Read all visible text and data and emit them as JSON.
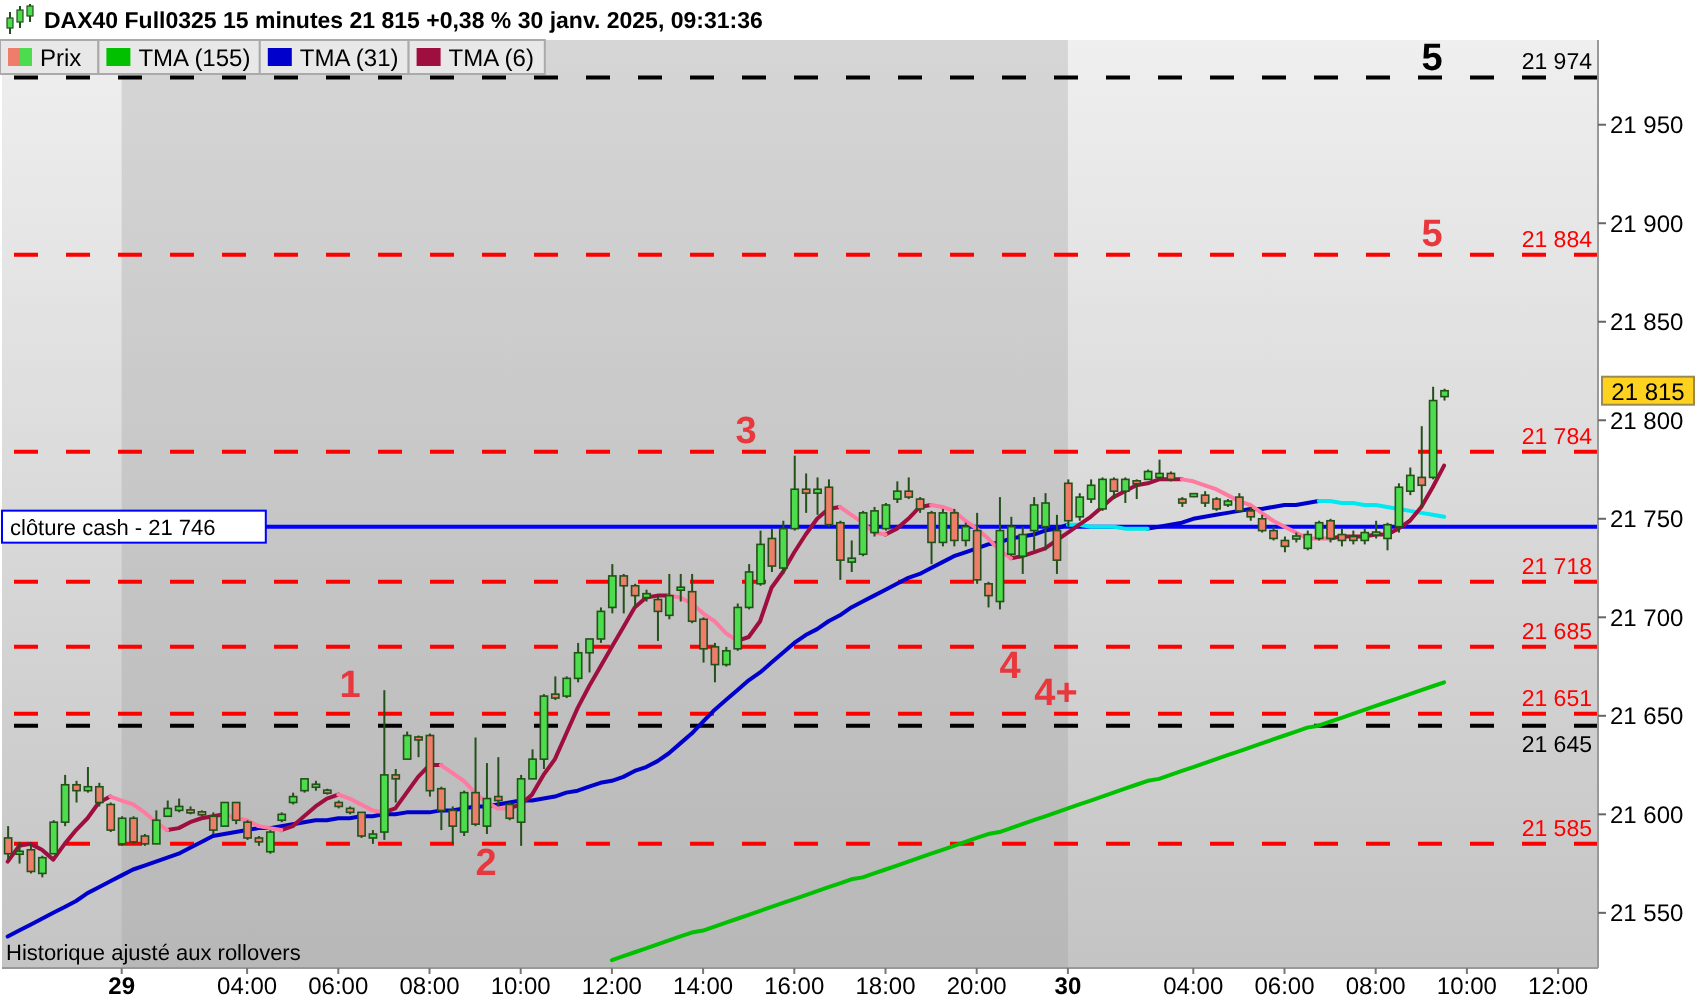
{
  "chart_data": {
    "type": "candlestick",
    "title": "DAX40 Full0325 15 minutes 21 815 +0,38 % 30 janv. 2025, 09:31:36",
    "categories": [
      null,
      null,
      null,
      null,
      null,
      null,
      null,
      null,
      null,
      null,
      "29",
      null,
      null,
      null,
      null,
      null,
      null,
      null,
      null,
      null,
      null,
      "04:00",
      null,
      null,
      null,
      null,
      null,
      null,
      null,
      "06:00",
      null,
      null,
      null,
      null,
      null,
      null,
      null,
      "08:00",
      null,
      null,
      null,
      null,
      null,
      null,
      null,
      "10:00",
      null,
      null,
      null,
      null,
      null,
      null,
      null,
      "12:00",
      null,
      null,
      null,
      null,
      null,
      null,
      null,
      "14:00",
      null,
      null,
      null,
      null,
      null,
      null,
      null,
      "16:00",
      null,
      null,
      null,
      null,
      null,
      null,
      null,
      "18:00",
      null,
      null,
      null,
      null,
      null,
      null,
      null,
      "20:00",
      null,
      null,
      null,
      null,
      null,
      null,
      null,
      "30",
      null,
      null,
      null,
      null,
      null,
      null,
      null,
      null,
      null,
      null,
      "04:00",
      null,
      null,
      null,
      null,
      null,
      null,
      null,
      "06:00",
      null,
      null,
      null,
      null,
      null,
      null,
      null,
      "08:00",
      null,
      null,
      null,
      null,
      null,
      null,
      null,
      "10:00",
      null,
      null,
      null,
      null,
      null,
      null,
      null,
      "12:00",
      null,
      null,
      null
    ],
    "series": [
      {
        "name": "Prix",
        "type": "candlestick",
        "ohlc": [
          [
            21588,
            21594,
            21577,
            21580
          ],
          [
            21580,
            21586,
            21575,
            21581
          ],
          [
            21582,
            21585,
            21570,
            21571
          ],
          [
            21570,
            21579,
            21568,
            21578
          ],
          [
            21580,
            21597,
            21580,
            21596
          ],
          [
            21596,
            21620,
            21594,
            21615
          ],
          [
            21615,
            21617,
            21606,
            21612
          ],
          [
            21612,
            21624,
            21611,
            21614
          ],
          [
            21614,
            21616,
            21604,
            21606
          ],
          [
            21605,
            21606,
            21591,
            21592
          ],
          [
            21585,
            21599,
            21584,
            21598
          ],
          [
            21598,
            21599,
            21585,
            21586
          ],
          [
            21589,
            21590,
            21584,
            21585
          ],
          [
            21585,
            21602,
            21585,
            21597
          ],
          [
            21599,
            21607,
            21599,
            21603
          ],
          [
            21602,
            21608,
            21601,
            21604
          ],
          [
            21602,
            21604,
            21600,
            21601
          ],
          [
            21601,
            21602,
            21599,
            21600
          ],
          [
            21599,
            21601,
            21590,
            21592
          ],
          [
            21594,
            21606,
            21594,
            21606
          ],
          [
            21606,
            21606,
            21595,
            21597
          ],
          [
            21596,
            21597,
            21587,
            21588
          ],
          [
            21588,
            21589,
            21584,
            21586
          ],
          [
            21581,
            21592,
            21580,
            21591
          ],
          [
            21597,
            21601,
            21596,
            21600
          ],
          [
            21606,
            21611,
            21605,
            21609
          ],
          [
            21612,
            21618,
            21611,
            21618
          ],
          [
            21614,
            21617,
            21612,
            21615
          ],
          [
            21612,
            21613,
            21610,
            21611
          ],
          [
            21606,
            21607,
            21603,
            21604
          ],
          [
            21603,
            21604,
            21600,
            21601
          ],
          [
            21601,
            21601,
            21588,
            21589
          ],
          [
            21588,
            21592,
            21585,
            21590
          ],
          [
            21591,
            21663,
            21587,
            21620
          ],
          [
            21620,
            21623,
            21606,
            21618
          ],
          [
            21628,
            21642,
            21628,
            21640
          ],
          [
            21639,
            21640,
            21629,
            21638
          ],
          [
            21640,
            21641,
            21609,
            21612
          ],
          [
            21613,
            21614,
            21592,
            21602
          ],
          [
            21602,
            21604,
            21585,
            21594
          ],
          [
            21591,
            21612,
            21589,
            21611
          ],
          [
            21611,
            21639,
            21594,
            21595
          ],
          [
            21594,
            21626,
            21590,
            21608
          ],
          [
            21609,
            21629,
            21604,
            21607
          ],
          [
            21605,
            21606,
            21597,
            21598
          ],
          [
            21596,
            21620,
            21584,
            21618
          ],
          [
            21618,
            21633,
            21618,
            21628
          ],
          [
            21628,
            21661,
            21623,
            21660
          ],
          [
            21661,
            21670,
            21658,
            21659
          ],
          [
            21660,
            21670,
            21659,
            21669
          ],
          [
            21669,
            21687,
            21667,
            21682
          ],
          [
            21682,
            21689,
            21672,
            21689
          ],
          [
            21689,
            21705,
            21687,
            21703
          ],
          [
            21705,
            21727,
            21702,
            21721
          ],
          [
            21721,
            21722,
            21702,
            21716
          ],
          [
            21716,
            21717,
            21705,
            21711
          ],
          [
            21710,
            21714,
            21708,
            21712
          ],
          [
            21709,
            21711,
            21688,
            21703
          ],
          [
            21701,
            21722,
            21699,
            21711
          ],
          [
            21714,
            21722,
            21708,
            21715
          ],
          [
            21713,
            21722,
            21697,
            21698
          ],
          [
            21699,
            21700,
            21677,
            21684
          ],
          [
            21685,
            21687,
            21667,
            21676
          ],
          [
            21676,
            21685,
            21675,
            21683
          ],
          [
            21684,
            21707,
            21683,
            21705
          ],
          [
            21705,
            21727,
            21704,
            21723
          ],
          [
            21717,
            21744,
            21716,
            21737
          ],
          [
            21740,
            21745,
            21723,
            21726
          ],
          [
            21725,
            21749,
            21722,
            21745
          ],
          [
            21745,
            21782,
            21744,
            21765
          ],
          [
            21765,
            21773,
            21753,
            21763
          ],
          [
            21763,
            21771,
            21752,
            21765
          ],
          [
            21766,
            21770,
            21746,
            21747
          ],
          [
            21748,
            21749,
            21719,
            21729
          ],
          [
            21728,
            21739,
            21723,
            21730
          ],
          [
            21732,
            21754,
            21731,
            21753
          ],
          [
            21743,
            21756,
            21741,
            21754
          ],
          [
            21745,
            21758,
            21744,
            21757
          ],
          [
            21760,
            21769,
            21758,
            21764
          ],
          [
            21764,
            21771,
            21760,
            21761
          ],
          [
            21760,
            21761,
            21753,
            21755
          ],
          [
            21753,
            21754,
            21727,
            21738
          ],
          [
            21738,
            21755,
            21736,
            21753
          ],
          [
            21753,
            21755,
            21736,
            21739
          ],
          [
            21739,
            21748,
            21736,
            21746
          ],
          [
            21744,
            21753,
            21717,
            21719
          ],
          [
            21717,
            21718,
            21705,
            21711
          ],
          [
            21708,
            21761,
            21704,
            21744
          ],
          [
            21732,
            21751,
            21731,
            21746
          ],
          [
            21731,
            21746,
            21722,
            21742
          ],
          [
            21744,
            21761,
            21734,
            21757
          ],
          [
            21746,
            21763,
            21734,
            21758
          ],
          [
            21744,
            21752,
            21722,
            21729
          ],
          [
            21768,
            21770,
            21746,
            21749
          ],
          [
            21751,
            21763,
            21749,
            21761
          ],
          [
            21760,
            21770,
            21758,
            21767
          ],
          [
            21755,
            21771,
            21754,
            21770
          ],
          [
            21770,
            21771,
            21760,
            21764
          ],
          [
            21764,
            21771,
            21758,
            21770
          ],
          [
            21769,
            21770,
            21760,
            21768
          ],
          [
            21770,
            21775,
            21770,
            21774
          ],
          [
            21771,
            21780,
            21770,
            21773
          ],
          [
            21773,
            21774,
            21769,
            21770
          ],
          [
            21760,
            21761,
            21756,
            21758
          ],
          [
            21762,
            21763,
            21761,
            21762
          ],
          [
            21762,
            21764,
            21756,
            21758
          ],
          [
            21760,
            21761,
            21754,
            21755
          ],
          [
            21757,
            21760,
            21756,
            21759
          ],
          [
            21761,
            21763,
            21753,
            21754
          ],
          [
            21754,
            21756,
            21749,
            21751
          ],
          [
            21750,
            21752,
            21743,
            21744
          ],
          [
            21744,
            21746,
            21739,
            21740
          ],
          [
            21739,
            21741,
            21733,
            21736
          ],
          [
            21740,
            21743,
            21738,
            21741
          ],
          [
            21735,
            21744,
            21734,
            21742
          ],
          [
            21740,
            21749,
            21739,
            21748
          ],
          [
            21749,
            21750,
            21738,
            21740
          ],
          [
            21742,
            21745,
            21736,
            21739
          ],
          [
            21741,
            21744,
            21737,
            21739
          ],
          [
            21739,
            21745,
            21737,
            21743
          ],
          [
            21742,
            21749,
            21740,
            21743
          ],
          [
            21740,
            21748,
            21734,
            21747
          ],
          [
            21746,
            21768,
            21743,
            21766
          ],
          [
            21764,
            21776,
            21762,
            21772
          ],
          [
            21771,
            21797,
            21756,
            21767
          ],
          [
            21771,
            21817,
            21770,
            21810
          ],
          [
            21812,
            21816,
            21810,
            21815
          ],
          null,
          null,
          null,
          null,
          null,
          null,
          null,
          null,
          null,
          null,
          null,
          null,
          null
        ],
        "colors": [
          "#ef7d6b",
          "#4ddc4d",
          "#ef7d6b",
          "#4ddc4d",
          "#4ddc4d",
          "#4ddc4d",
          "#ef7d6b",
          "#4ddc4d",
          "#ef7d6b",
          "#ef7d6b",
          "#4ddc4d",
          "#ef7d6b",
          "#ef7d6b",
          "#4ddc4d",
          "#4ddc4d",
          "#4ddc4d",
          "#ef7d6b",
          "#ef7d6b",
          "#ef7d6b",
          "#4ddc4d",
          "#ef7d6b",
          "#ef7d6b",
          "#ef7d6b",
          "#4ddc4d",
          "#4ddc4d",
          "#4ddc4d",
          "#4ddc4d",
          "#4ddc4d",
          "#ef7d6b",
          "#ef7d6b",
          "#ef7d6b",
          "#ef7d6b",
          "#4ddc4d",
          "#4ddc4d",
          "#ef7d6b",
          "#4ddc4d",
          "#ef7d6b",
          "#ef7d6b",
          "#ef7d6b",
          "#ef7d6b",
          "#4ddc4d",
          "#ef7d6b",
          "#4ddc4d",
          "#ef7d6b",
          "#ef7d6b",
          "#4ddc4d",
          "#4ddc4d",
          "#4ddc4d",
          "#ef7d6b",
          "#4ddc4d",
          "#4ddc4d",
          "#4ddc4d",
          "#4ddc4d",
          "#4ddc4d",
          "#ef7d6b",
          "#ef7d6b",
          "#4ddc4d",
          "#ef7d6b",
          "#4ddc4d",
          "#4ddc4d",
          "#ef7d6b",
          "#ef7d6b",
          "#ef7d6b",
          "#4ddc4d",
          "#4ddc4d",
          "#4ddc4d",
          "#4ddc4d",
          "#ef7d6b",
          "#4ddc4d",
          "#4ddc4d",
          "#ef7d6b",
          "#4ddc4d",
          "#ef7d6b",
          "#ef7d6b",
          "#4ddc4d",
          "#4ddc4d",
          "#4ddc4d",
          "#4ddc4d",
          "#4ddc4d",
          "#ef7d6b",
          "#ef7d6b",
          "#ef7d6b",
          "#4ddc4d",
          "#ef7d6b",
          "#4ddc4d",
          "#ef7d6b",
          "#ef7d6b",
          "#4ddc4d",
          "#4ddc4d",
          "#4ddc4d",
          "#4ddc4d",
          "#4ddc4d",
          "#ef7d6b",
          "#ef7d6b",
          "#4ddc4d",
          "#4ddc4d",
          "#4ddc4d",
          "#ef7d6b",
          "#4ddc4d",
          "#ef7d6b",
          "#4ddc4d",
          "#4ddc4d",
          "#ef7d6b",
          "#ef7d6b",
          "#4ddc4d",
          "#ef7d6b",
          "#ef7d6b",
          "#4ddc4d",
          "#ef7d6b",
          "#ef7d6b",
          "#ef7d6b",
          "#ef7d6b",
          "#ef7d6b",
          "#4ddc4d",
          "#4ddc4d",
          "#4ddc4d",
          "#ef7d6b",
          "#ef7d6b",
          "#ef7d6b",
          "#4ddc4d",
          "#4ddc4d",
          "#4ddc4d",
          "#4ddc4d",
          "#4ddc4d",
          "#ef7d6b",
          "#4ddc4d",
          "#4ddc4d",
          null,
          null,
          null,
          null,
          null,
          null,
          null,
          null,
          null,
          null,
          null,
          null,
          null
        ]
      },
      {
        "name": "TMA (155)",
        "type": "line",
        "color": "#00c000",
        "values": [
          null,
          null,
          null,
          null,
          null,
          null,
          null,
          null,
          null,
          null,
          null,
          null,
          null,
          null,
          null,
          null,
          null,
          null,
          null,
          null,
          null,
          null,
          null,
          null,
          null,
          null,
          null,
          null,
          null,
          null,
          null,
          null,
          null,
          null,
          null,
          null,
          null,
          null,
          null,
          null,
          null,
          null,
          null,
          null,
          null,
          null,
          null,
          null,
          null,
          null,
          null,
          null,
          null,
          21526,
          21528,
          21530,
          21532,
          21534,
          21536,
          21538,
          21540,
          21541,
          21543,
          21545,
          21547,
          21549,
          21551,
          21553,
          21555,
          21557,
          21559,
          21561,
          21563,
          21565,
          21567,
          21568,
          21570,
          21572,
          21574,
          21576,
          21578,
          21580,
          21582,
          21584,
          21586,
          21588,
          21590,
          21591,
          21593,
          21595,
          21597,
          21599,
          21601,
          21603,
          21605,
          21607,
          21609,
          21611,
          21613,
          21615,
          21617,
          21618,
          21620,
          21622,
          21624,
          21626,
          21628,
          21630,
          21632,
          21634,
          21636,
          21638,
          21640,
          21642,
          21644,
          21645,
          21647,
          21649,
          21651,
          21653,
          21655,
          21657,
          21659,
          21661,
          21663,
          21665,
          21667,
          null,
          null,
          null,
          null,
          null,
          null,
          null,
          null,
          null,
          null,
          null,
          null,
          null
        ]
      },
      {
        "name": "TMA (31)",
        "type": "line",
        "color": "#0000cc",
        "values": [
          21538,
          21541,
          21544,
          21547,
          21550,
          21553,
          21556,
          21560,
          21563,
          21566,
          21569,
          21572,
          21574,
          21576,
          21578,
          21580,
          21583,
          21586,
          21589,
          21590,
          21591,
          21592,
          21593,
          21593,
          21594,
          21595,
          21596,
          21597,
          21597,
          21598,
          21598,
          21599,
          21599,
          21600,
          21600,
          21601,
          21601,
          21601,
          21602,
          21602,
          21603,
          21604,
          21604,
          21605,
          21606,
          21607,
          21607,
          21608,
          21609,
          21611,
          21612,
          21614,
          21616,
          21617,
          21619,
          21622,
          21624,
          21627,
          21631,
          21636,
          21641,
          21647,
          21653,
          21658,
          21663,
          21668,
          21672,
          21677,
          21682,
          21687,
          21691,
          21694,
          21698,
          21701,
          21705,
          21708,
          21711,
          21714,
          21717,
          21720,
          21722,
          21725,
          21728,
          21731,
          21733,
          21735,
          21737,
          21738,
          21740,
          21741,
          21742,
          21744,
          21745,
          21747,
          null,
          null,
          null,
          null,
          null,
          null,
          21745,
          21746,
          21747,
          21748,
          21750,
          21751,
          21752,
          21753,
          21754,
          21755,
          21755,
          21756,
          21757,
          21757,
          21758,
          21759,
          null,
          null,
          null,
          null,
          null,
          null,
          null,
          null,
          null,
          null,
          null,
          null,
          null,
          null,
          null,
          null,
          null,
          null,
          null,
          null,
          null,
          null,
          null,
          null
        ]
      },
      {
        "type": "line",
        "color": "#00e8f0",
        "values": [
          null,
          null,
          null,
          null,
          null,
          null,
          null,
          null,
          null,
          null,
          null,
          null,
          null,
          null,
          null,
          null,
          null,
          null,
          null,
          null,
          null,
          null,
          null,
          null,
          null,
          null,
          null,
          null,
          null,
          null,
          null,
          null,
          null,
          null,
          null,
          null,
          null,
          null,
          null,
          null,
          null,
          null,
          null,
          null,
          null,
          null,
          null,
          null,
          null,
          null,
          null,
          null,
          null,
          null,
          null,
          null,
          null,
          null,
          null,
          null,
          null,
          null,
          null,
          null,
          null,
          null,
          null,
          null,
          null,
          null,
          null,
          null,
          null,
          null,
          null,
          null,
          null,
          null,
          null,
          null,
          null,
          null,
          null,
          null,
          null,
          null,
          null,
          null,
          null,
          null,
          null,
          null,
          null,
          21747,
          21747,
          21746,
          21746,
          21746,
          21745,
          21745,
          21745,
          null,
          null,
          null,
          null,
          null,
          null,
          null,
          null,
          null,
          null,
          null,
          null,
          null,
          null,
          21759,
          21759,
          21758,
          21758,
          21757,
          21757,
          21756,
          21755,
          21754,
          21753,
          21752,
          21751,
          null,
          null,
          null,
          null,
          null,
          null,
          null,
          null,
          null,
          null,
          null,
          null,
          null
        ]
      },
      {
        "name": "TMA (6)",
        "type": "line",
        "color": "#9e0e3e",
        "values": [
          21576,
          21584,
          21585,
          21582,
          21577,
          21585,
          21592,
          21598,
          21606,
          21609,
          null,
          null,
          null,
          null,
          21592,
          21593,
          21596,
          21598,
          21599,
          21600,
          null,
          null,
          null,
          null,
          21592,
          21594,
          21599,
          21604,
          21608,
          21610,
          null,
          null,
          null,
          21601,
          21603,
          21611,
          21619,
          21625,
          21625,
          null,
          null,
          null,
          null,
          null,
          21603,
          21605,
          21610,
          21620,
          21628,
          21641,
          21654,
          21665,
          21675,
          21685,
          21695,
          21705,
          21710,
          21711,
          21711,
          null,
          null,
          null,
          null,
          null,
          21688,
          21690,
          21698,
          21715,
          21723,
          21733,
          21742,
          21750,
          21755,
          21756,
          null,
          null,
          null,
          21742,
          21745,
          21750,
          21756,
          21757,
          null,
          null,
          null,
          null,
          null,
          null,
          21730,
          21731,
          21733,
          21735,
          21739,
          21743,
          21747,
          21751,
          21756,
          21761,
          21764,
          21767,
          21768,
          21770,
          21770,
          21770,
          null,
          null,
          null,
          null,
          null,
          null,
          null,
          null,
          null,
          null,
          null,
          null,
          21740,
          21741,
          21741,
          21741,
          21742,
          21742,
          21745,
          21749,
          21756,
          21766,
          21777,
          null,
          null,
          null,
          null,
          null,
          null,
          null,
          null,
          null,
          null,
          null,
          null,
          null
        ]
      },
      {
        "type": "line",
        "color": "#ff7aa0",
        "values": [
          null,
          null,
          null,
          null,
          null,
          null,
          null,
          null,
          null,
          21609,
          21607,
          21605,
          21601,
          21596,
          21592,
          null,
          null,
          null,
          null,
          21600,
          21598,
          21597,
          21594,
          21593,
          21592,
          null,
          null,
          null,
          null,
          21610,
          21608,
          21605,
          21602,
          21601,
          null,
          null,
          null,
          null,
          21625,
          21621,
          21617,
          21611,
          21606,
          21603,
          21603,
          null,
          null,
          null,
          null,
          null,
          null,
          null,
          null,
          null,
          null,
          null,
          null,
          null,
          21711,
          21710,
          21707,
          21702,
          21698,
          21692,
          21688,
          null,
          null,
          null,
          null,
          null,
          null,
          null,
          null,
          21756,
          21752,
          21748,
          21743,
          21742,
          null,
          null,
          null,
          21757,
          21756,
          21754,
          21749,
          21745,
          21740,
          21734,
          21730,
          null,
          null,
          null,
          null,
          null,
          null,
          null,
          null,
          null,
          null,
          null,
          null,
          null,
          null,
          21770,
          21769,
          21767,
          21765,
          21762,
          21759,
          21757,
          21753,
          21749,
          21746,
          21743,
          21740,
          21740,
          21740,
          null,
          null,
          null,
          null,
          null,
          null,
          null,
          null,
          null,
          null,
          null,
          null,
          null,
          null,
          null,
          null,
          null,
          null,
          null,
          null,
          null,
          null,
          null
        ]
      }
    ],
    "ylim": [
      21522,
      21993
    ],
    "yticks": [
      {
        "value": 21550,
        "label": "21 550"
      },
      {
        "value": 21600,
        "label": "21 600"
      },
      {
        "value": 21650,
        "label": "21 650"
      },
      {
        "value": 21700,
        "label": "21 700"
      },
      {
        "value": 21750,
        "label": "21 750"
      },
      {
        "value": 21800,
        "label": "21 800"
      },
      {
        "value": 21850,
        "label": "21 850"
      },
      {
        "value": 21900,
        "label": "21 900"
      },
      {
        "value": 21950,
        "label": "21 950"
      }
    ],
    "ref_lines": [
      {
        "axis": "y",
        "value": 21974,
        "label": "21 974",
        "color": "#000000",
        "line_style": "dashed"
      },
      {
        "axis": "y",
        "value": 21884,
        "label": "21 884",
        "color": "#ff0000",
        "line_style": "dashed"
      },
      {
        "axis": "y",
        "value": 21784,
        "label": "21 784",
        "color": "#ff0000",
        "line_style": "dashed"
      },
      {
        "axis": "y",
        "value": 21746,
        "label": "clôture cash - 21 746",
        "color": "#0000ff",
        "line_style": "solid"
      },
      {
        "axis": "y",
        "value": 21718,
        "label": "21 718",
        "color": "#ff0000",
        "line_style": "dashed"
      },
      {
        "axis": "y",
        "value": 21685,
        "label": "21 685",
        "color": "#ff0000",
        "line_style": "dashed"
      },
      {
        "axis": "y",
        "value": 21651,
        "label": "21 651",
        "color": "#ff0000",
        "line_style": "dashed"
      },
      {
        "axis": "y",
        "value": 21645,
        "label": "21 645",
        "color": "#000000",
        "line_style": "dashed"
      },
      {
        "axis": "y",
        "value": 21585,
        "label": "21 585",
        "color": "#ff0000",
        "line_style": "dashed"
      }
    ],
    "bands": [
      {
        "axis": "x",
        "from": "29",
        "to": "30",
        "color": "#9a9a9a"
      }
    ],
    "annotations": [
      "1",
      {
        "text": "2",
        "y": 21585
      },
      {
        "text": "3",
        "y": 21784
      },
      {
        "text": "4",
        "y": 21685
      },
      {
        "text": "4+",
        "y": 21651
      },
      {
        "text": "5",
        "y": 21884
      },
      {
        "text": "5",
        "y": 21974
      },
      "21 815",
      "Historique ajusté aux rollovers"
    ],
    "legend": "top left"
  }
}
